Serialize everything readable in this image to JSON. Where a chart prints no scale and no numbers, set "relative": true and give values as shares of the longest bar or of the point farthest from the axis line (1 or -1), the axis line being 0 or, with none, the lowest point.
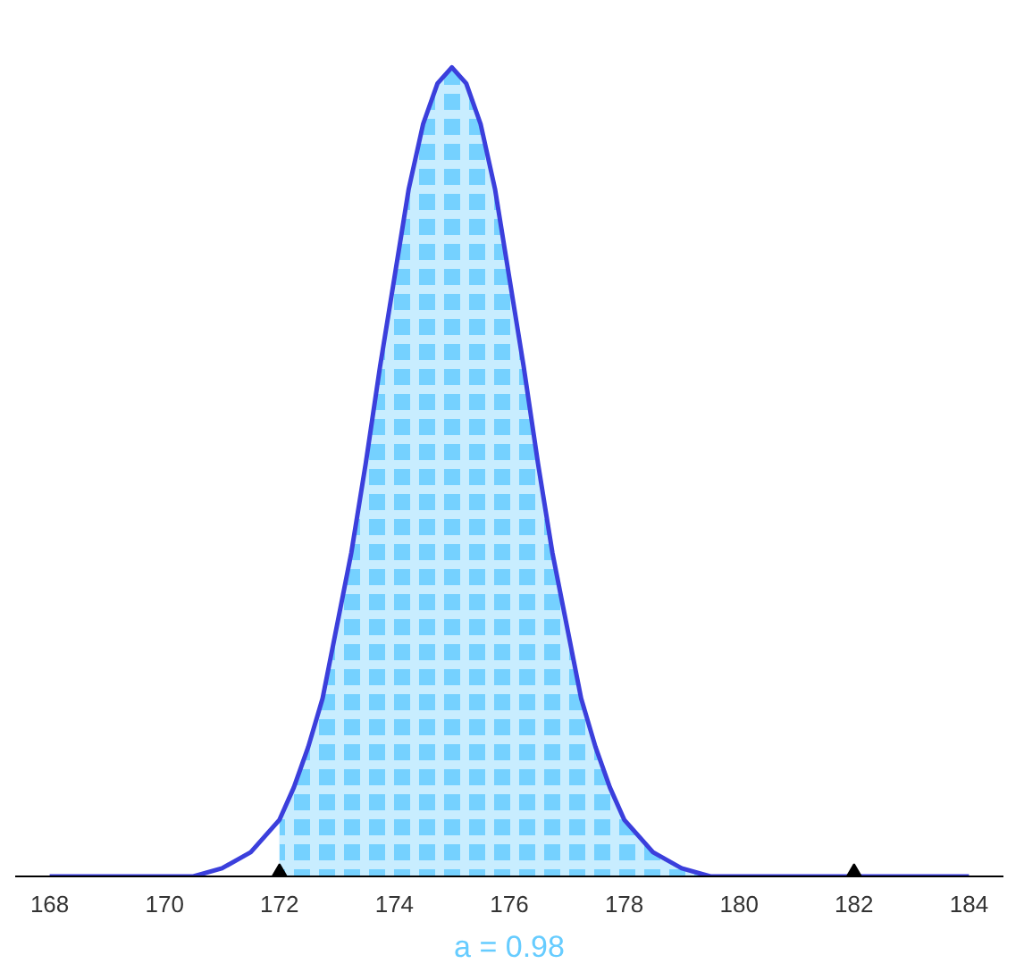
{
  "chart_data": {
    "type": "area",
    "relative": true,
    "grid": false,
    "xlim": [
      167.4,
      184.6
    ],
    "xticks": [
      168,
      170,
      172,
      174,
      176,
      178,
      180,
      182,
      184
    ],
    "series": [
      {
        "color": "#66ccff",
        "x": [
          172,
          172.25,
          172.5,
          172.75,
          173,
          173.25,
          173.5,
          173.75,
          174,
          174.25,
          174.5,
          174.75,
          175,
          175.25,
          175.5,
          175.75,
          176,
          176.25,
          176.5,
          176.75,
          177,
          177.25,
          177.5,
          177.75,
          178,
          178.5,
          179,
          179.5,
          180,
          181,
          182
        ],
        "values": [
          0.07,
          0.11,
          0.16,
          0.22,
          0.31,
          0.4,
          0.51,
          0.63,
          0.74,
          0.85,
          0.93,
          0.98,
          1,
          0.98,
          0.93,
          0.85,
          0.74,
          0.63,
          0.51,
          0.4,
          0.31,
          0.22,
          0.16,
          0.11,
          0.07,
          0.03,
          0.01,
          0,
          0,
          0,
          0
        ]
      },
      {
        "type": "line",
        "color": "#3b3fdc",
        "marker": "none",
        "x": [
          168,
          169,
          170,
          170.5,
          171,
          171.5,
          172,
          172.25,
          172.5,
          172.75,
          173,
          173.25,
          173.5,
          173.75,
          174,
          174.25,
          174.5,
          174.75,
          175,
          175.25,
          175.5,
          175.75,
          176,
          176.25,
          176.5,
          176.75,
          177,
          177.25,
          177.5,
          177.75,
          178,
          178.5,
          179,
          179.5,
          180,
          181,
          182,
          183,
          184
        ],
        "values": [
          0,
          0,
          0,
          0,
          0.01,
          0.03,
          0.07,
          0.11,
          0.16,
          0.22,
          0.31,
          0.4,
          0.51,
          0.63,
          0.74,
          0.85,
          0.93,
          0.98,
          1,
          0.98,
          0.93,
          0.85,
          0.74,
          0.63,
          0.51,
          0.4,
          0.31,
          0.22,
          0.16,
          0.11,
          0.07,
          0.03,
          0.01,
          0,
          0,
          0,
          0,
          0,
          0
        ]
      },
      {
        "type": "scatter",
        "color": "#000000",
        "marker": "triangle",
        "x": [
          172,
          182
        ],
        "values": [
          0,
          0
        ]
      }
    ],
    "annotations": [
      "a = 0.98"
    ]
  }
}
